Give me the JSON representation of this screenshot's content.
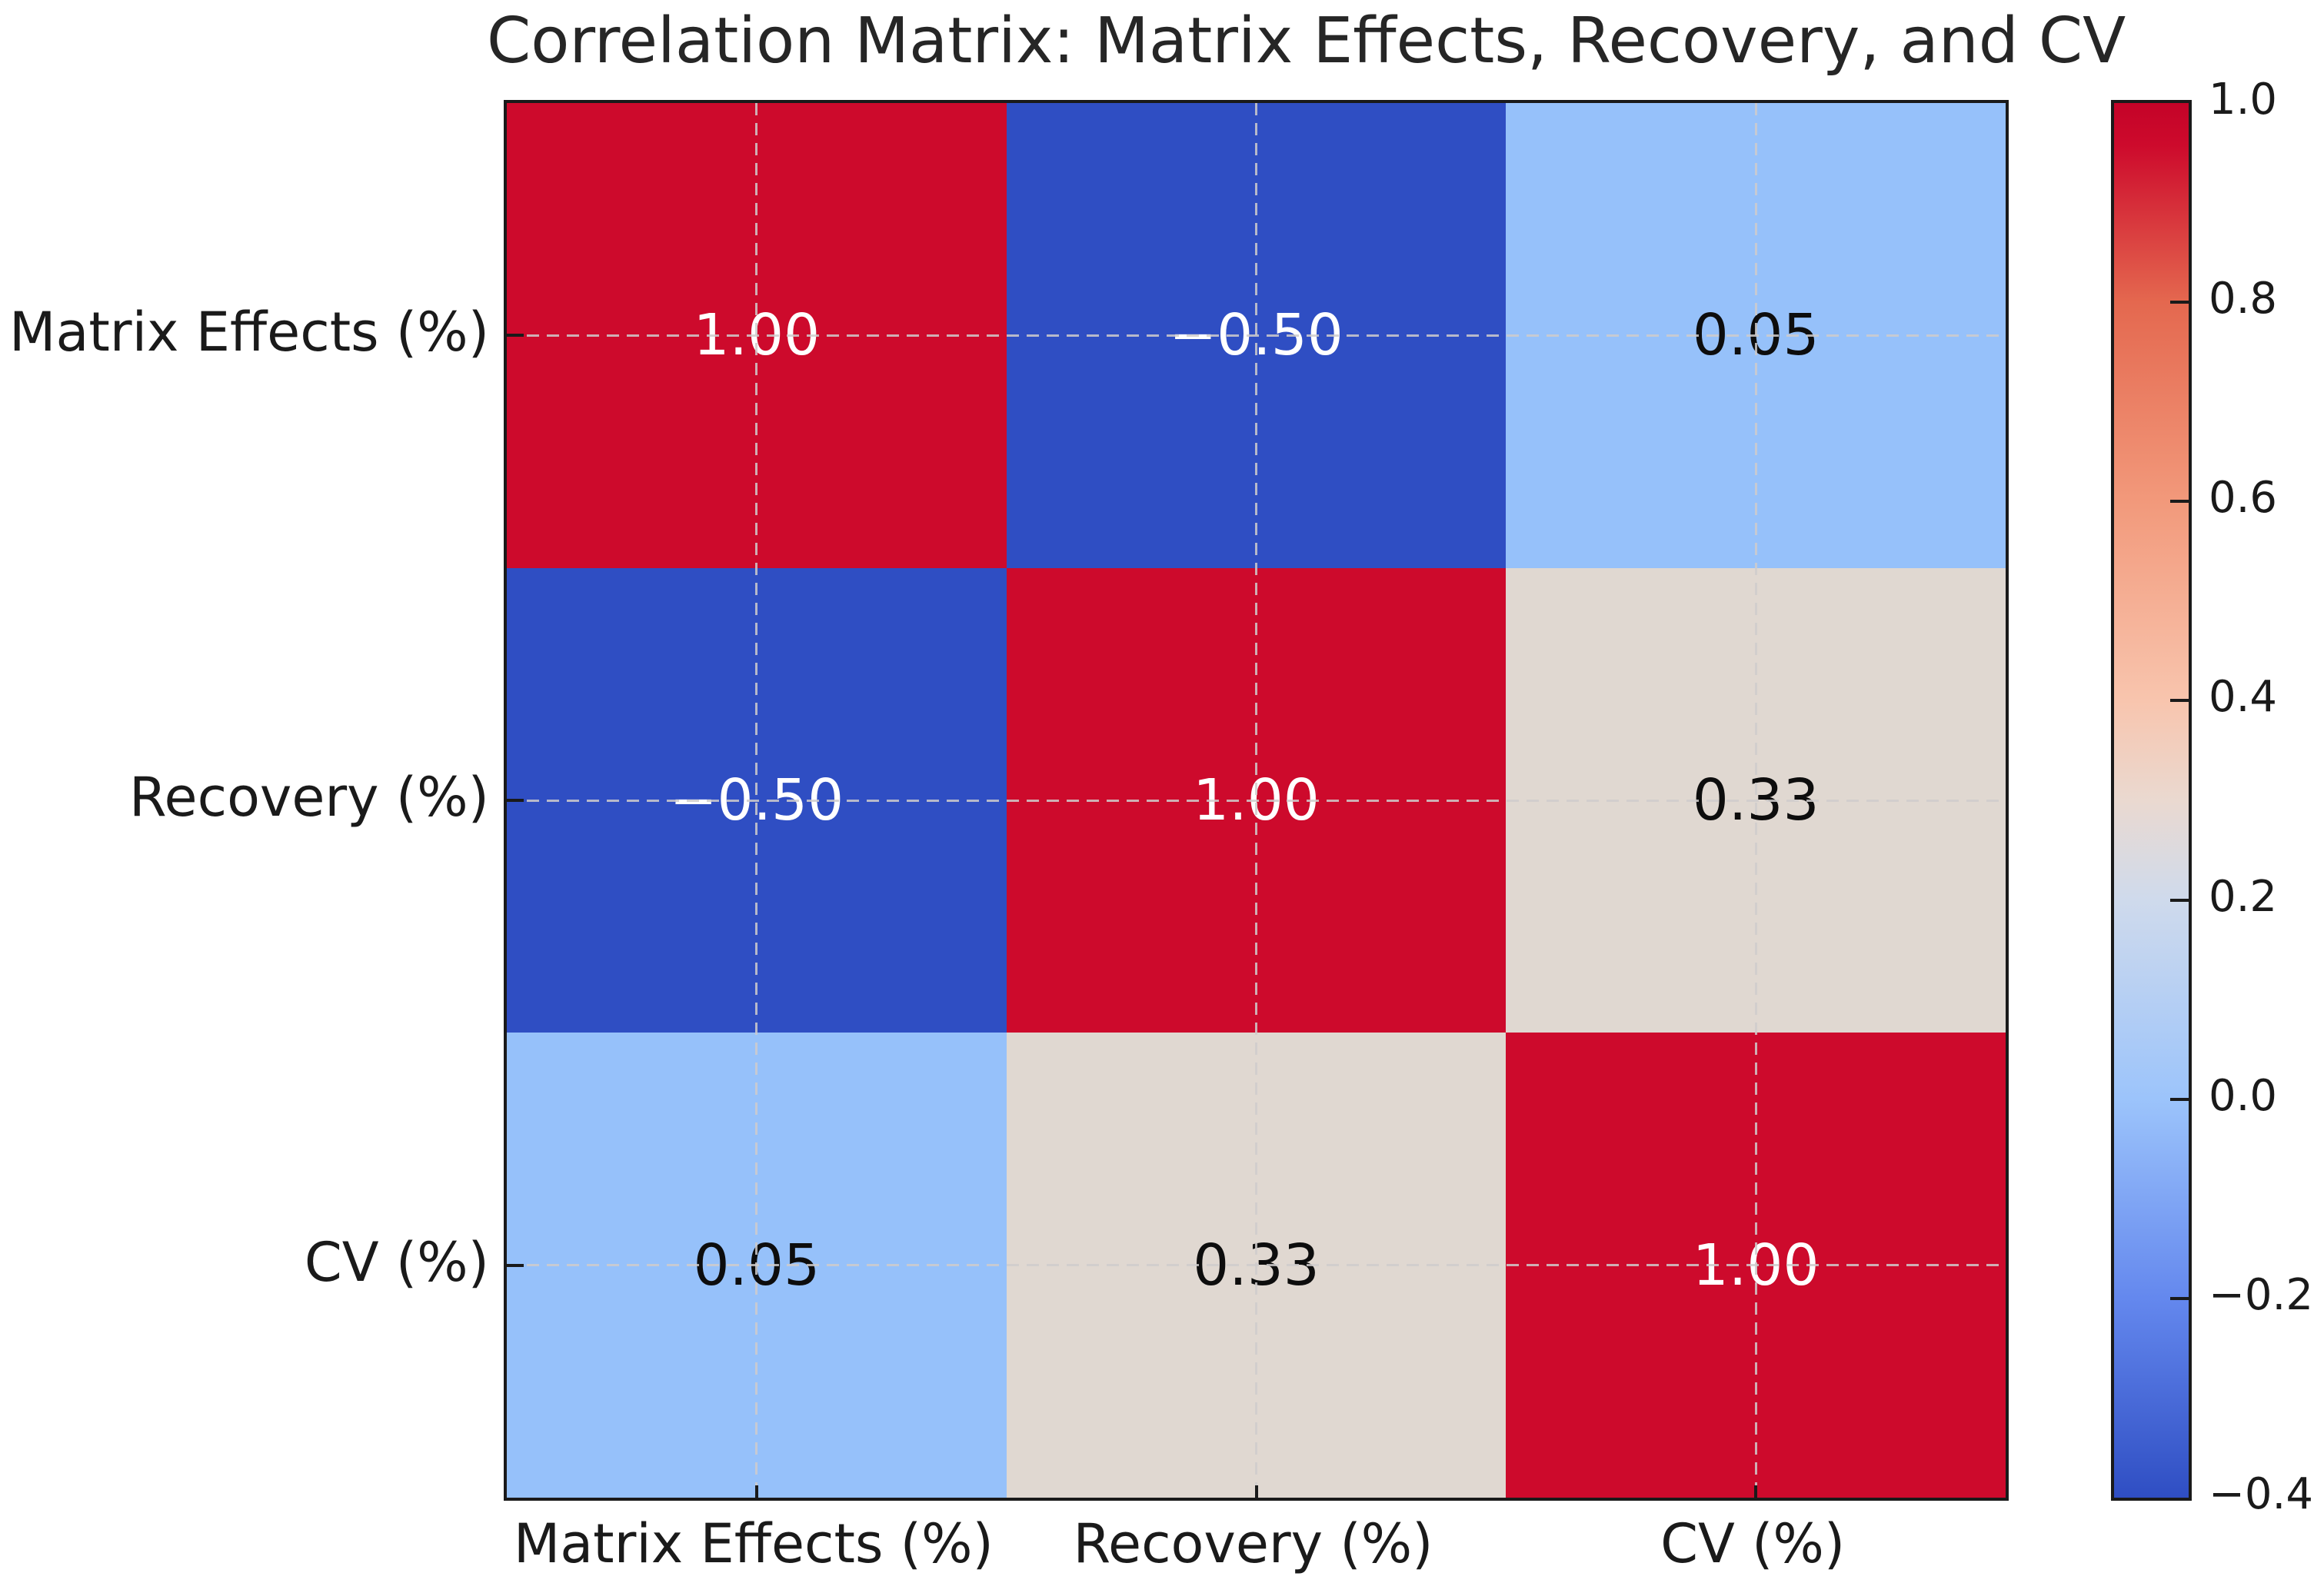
{
  "title": "Correlation Matrix: Matrix Effects, Recovery, and CV",
  "chart_data": {
    "type": "heatmap",
    "title": "Correlation Matrix: Matrix Effects, Recovery, and CV",
    "x_tick_labels": [
      "Matrix Effects (%)",
      "Recovery (%)",
      "CV (%)"
    ],
    "y_tick_labels": [
      "Matrix Effects (%)",
      "Recovery (%)",
      "CV (%)"
    ],
    "matrix": [
      [
        1.0,
        -0.5,
        0.05
      ],
      [
        -0.5,
        1.0,
        0.33
      ],
      [
        0.05,
        0.33,
        1.0
      ]
    ],
    "cell_labels": [
      [
        "1.00",
        "−0.50",
        "0.05"
      ],
      [
        "−0.50",
        "1.00",
        "0.33"
      ],
      [
        "0.05",
        "0.33",
        "1.00"
      ]
    ],
    "cell_colors": [
      [
        "#cd0a2c",
        "#2f4ec3",
        "#96c1fa"
      ],
      [
        "#2f4ec3",
        "#cd0a2c",
        "#e0d8d1"
      ],
      [
        "#96c1fa",
        "#e0d8d1",
        "#cd0a2c"
      ]
    ],
    "cell_text_colors": [
      [
        "#ffffff",
        "#ffffff",
        "#0d0d0d"
      ],
      [
        "#ffffff",
        "#ffffff",
        "#0d0d0d"
      ],
      [
        "#0d0d0d",
        "#0d0d0d",
        "#ffffff"
      ]
    ],
    "grid": true,
    "xlabel": "",
    "ylabel": "",
    "colorbar": {
      "position": "right",
      "vmin": -0.4,
      "vmax": 1.0,
      "tick_labels": [
        "1.0",
        "0.8",
        "0.6",
        "0.4",
        "0.2",
        "0.0",
        "−0.2",
        "−0.4"
      ],
      "tick_values": [
        1.0,
        0.8,
        0.6,
        0.4,
        0.2,
        0.0,
        -0.2,
        -0.4
      ],
      "gradient_stops": [
        [
          0,
          "#c40328"
        ],
        [
          3,
          "#cd0a2c"
        ],
        [
          14.3,
          "#e4684f"
        ],
        [
          28.6,
          "#f2997b"
        ],
        [
          42.9,
          "#f8c5ae"
        ],
        [
          50.0,
          "#ead9d0"
        ],
        [
          57.1,
          "#cfdaec"
        ],
        [
          71.4,
          "#9cc4fb"
        ],
        [
          85.7,
          "#6488ee"
        ],
        [
          100,
          "#2f4ec3"
        ]
      ]
    }
  },
  "colors": {
    "strong_positive": "#cd0a2c",
    "strong_negative": "#2f4ec3",
    "weak_positive_low": "#96c1fa",
    "weak_positive_mid": "#e0d8d1",
    "spine": "#1a1a1a",
    "gridline": "#cfcccc",
    "title_text": "#262626",
    "label_text": "#1a1a1a"
  }
}
